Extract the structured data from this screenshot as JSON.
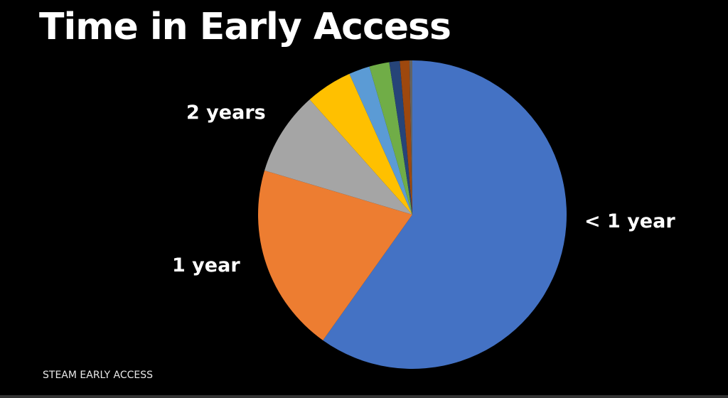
{
  "title": "Time in Early Access",
  "footer": "STEAM EARLY ACCESS",
  "chart_data": {
    "type": "pie",
    "title": "Time in Early Access",
    "start": "top, clockwise",
    "slices": [
      {
        "label": "< 1 year",
        "value": 59.9,
        "color": "#4472C4"
      },
      {
        "label": "1 year",
        "value": 19.8,
        "color": "#ED7D31"
      },
      {
        "label": "2 years",
        "value": 8.8,
        "color": "#A5A5A5"
      },
      {
        "label": "",
        "value": 4.9,
        "color": "#FFC000"
      },
      {
        "label": "",
        "value": 2.2,
        "color": "#5B9BD5"
      },
      {
        "label": "",
        "value": 2.1,
        "color": "#70AD47"
      },
      {
        "label": "",
        "value": 1.1,
        "color": "#264478"
      },
      {
        "label": "",
        "value": 1.0,
        "color": "#9E480E"
      },
      {
        "label": "",
        "value": 0.3,
        "color": "#636363"
      }
    ]
  }
}
